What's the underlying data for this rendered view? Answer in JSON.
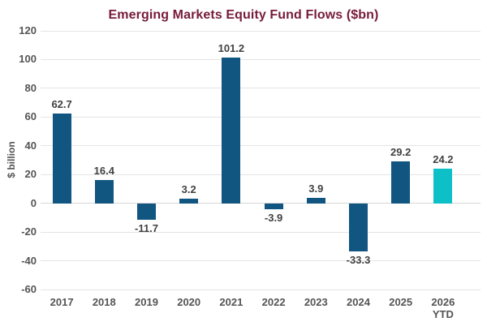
{
  "chart_data": {
    "type": "bar",
    "title": "Emerging Markets Equity Fund Flows ($bn)",
    "ylabel": "$ billion",
    "xlabel": "",
    "categories": [
      {
        "year": "2017",
        "suffix": ""
      },
      {
        "year": "2018",
        "suffix": ""
      },
      {
        "year": "2019",
        "suffix": ""
      },
      {
        "year": "2020",
        "suffix": ""
      },
      {
        "year": "2021",
        "suffix": ""
      },
      {
        "year": "2022",
        "suffix": ""
      },
      {
        "year": "2023",
        "suffix": ""
      },
      {
        "year": "2024",
        "suffix": ""
      },
      {
        "year": "2025",
        "suffix": ""
      },
      {
        "year": "2026",
        "suffix": "YTD"
      }
    ],
    "values": [
      62.7,
      16.4,
      -11.7,
      3.2,
      101.2,
      -3.9,
      3.9,
      -33.3,
      29.2,
      24.2
    ],
    "value_labels": [
      "62.7",
      "16.4",
      "-11.7",
      "3.2",
      "101.2",
      "-3.9",
      "3.9",
      "-33.3",
      "29.2",
      "24.2"
    ],
    "ylim": [
      -60,
      120
    ],
    "ytick_step": 20,
    "grid": true,
    "legend_position": "none",
    "bar_colors": [
      "#115680",
      "#115680",
      "#115680",
      "#115680",
      "#115680",
      "#115680",
      "#115680",
      "#115680",
      "#115680",
      "#0DC0C7"
    ],
    "colors": {
      "bar_default": "#115680",
      "bar_highlight": "#0DC0C7",
      "title": "#771B3A",
      "grid": "#E4E4E4",
      "zero_line": "#D6D6D6",
      "axis_text": "#545456",
      "value_text": "#414042"
    }
  }
}
